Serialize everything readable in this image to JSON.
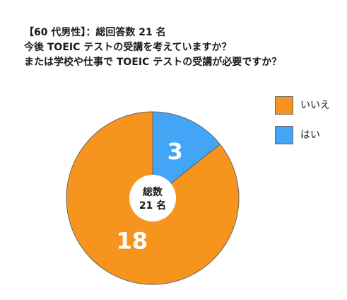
{
  "title_lines": [
    "【60 代男性】：総回答数 21 名",
    "今後 TOEIC テストの受講を考えていますか？",
    "または学校や仕事で TOEIC テストの受講が必要ですか？"
  ],
  "center": {
    "line1": "総数",
    "line2": "21 名"
  },
  "chart_data": {
    "type": "pie",
    "title": "【60 代男性】：総回答数 21 名 今後 TOEIC テストの受講を考えていますか？ または学校や仕事で TOEIC テストの受講が必要ですか？",
    "slices": [
      {
        "name": "はい",
        "value": 3,
        "color": "#42a5f5"
      },
      {
        "name": "いいえ",
        "value": 18,
        "color": "#f7941d"
      }
    ],
    "start_angle_deg": 0,
    "direction": "clockwise",
    "legend": {
      "placement": "right",
      "entries": [
        {
          "label": "いいえ",
          "color": "#f7941d"
        },
        {
          "label": "はい",
          "color": "#42a5f5"
        }
      ]
    },
    "total": 21
  }
}
